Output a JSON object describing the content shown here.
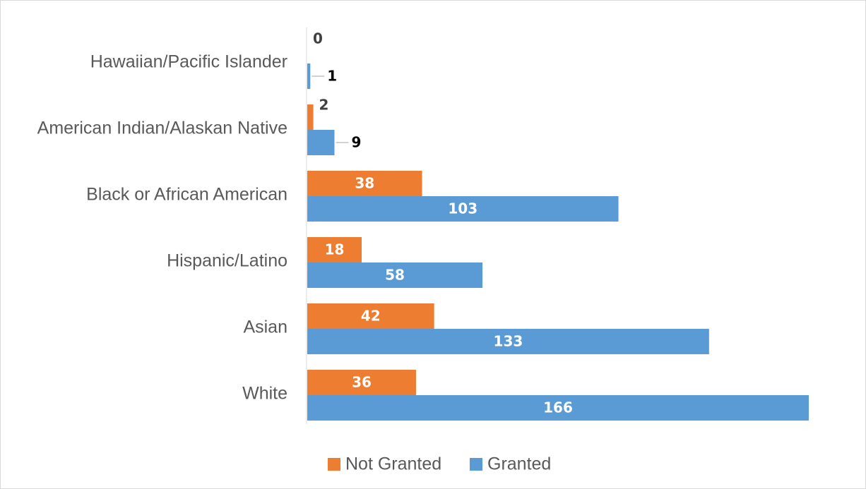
{
  "chart_data": {
    "type": "bar",
    "orientation": "horizontal",
    "title": "",
    "xlabel": "",
    "ylabel": "",
    "categories": [
      "Hawaiian/Pacific Islander",
      "American Indian/Alaskan Native",
      "Black or African American",
      "Hispanic/Latino",
      "Asian",
      "White"
    ],
    "series": [
      {
        "name": "Not Granted",
        "color": "#ed7d31",
        "values": [
          0,
          2,
          38,
          18,
          42,
          36
        ]
      },
      {
        "name": "Granted",
        "color": "#5b9bd5",
        "values": [
          1,
          9,
          103,
          58,
          133,
          166
        ]
      }
    ],
    "xlim": [
      0,
      166
    ],
    "grid": false,
    "legend_position": "bottom",
    "data_labels": true
  }
}
